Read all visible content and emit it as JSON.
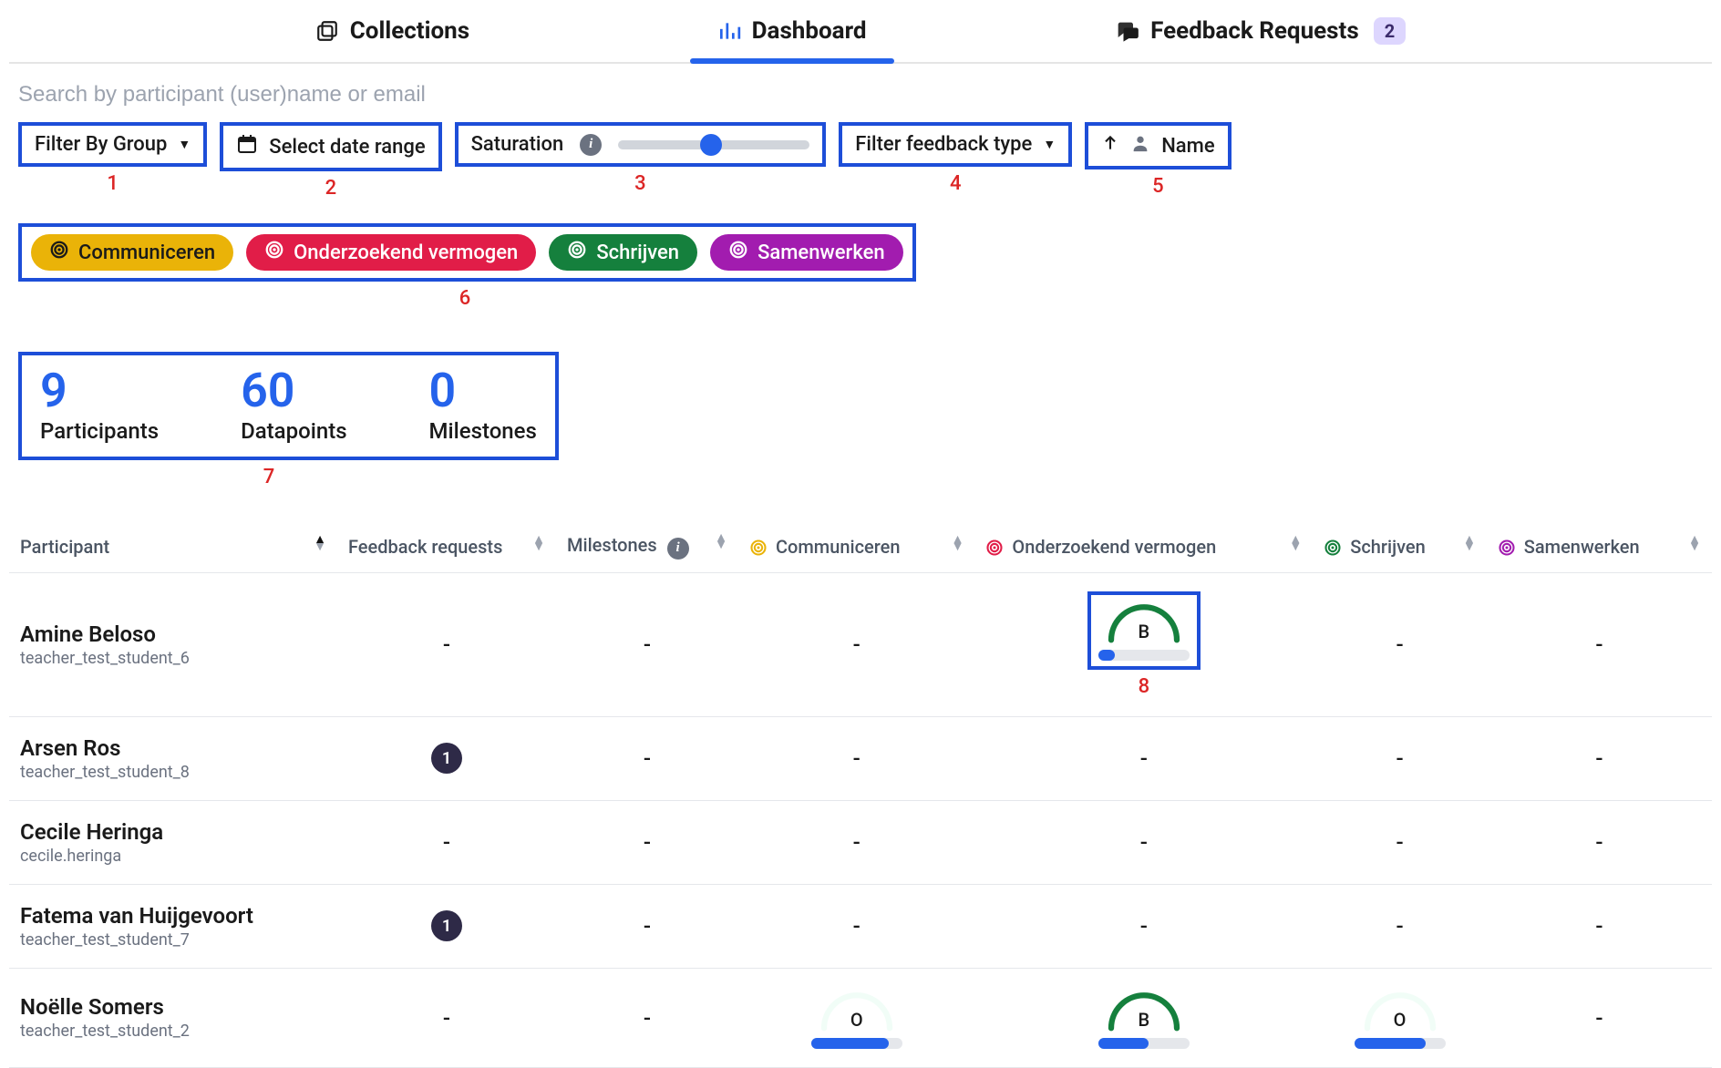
{
  "colors": {
    "brand_blue": "#2563eb",
    "box_blue": "#1d4ed8",
    "red_label": "#dc2626",
    "grey_text": "#6b7280",
    "badge_purple_bg": "#ddd6fe",
    "badge_purple_text": "#3b2b6b",
    "count_badge_bg": "#2e2a47",
    "grid": "#e5e7eb",
    "chip_yellow": "#eab308",
    "chip_red": "#e11d48",
    "chip_green": "#15803d",
    "chip_purple": "#a21caf",
    "gauge_green": "#15803d",
    "gauge_faint": "#d1fae5"
  },
  "tabs": {
    "collections": "Collections",
    "dashboard": "Dashboard",
    "feedback_requests": "Feedback Requests",
    "feedback_badge": "2",
    "active": "dashboard"
  },
  "search": {
    "placeholder": "Search by participant (user)name or email"
  },
  "filters": {
    "group": {
      "label": "Filter By Group",
      "num": "1"
    },
    "date_range": {
      "label": "Select date range",
      "num": "2"
    },
    "saturation": {
      "label": "Saturation",
      "num": "3",
      "value": 0.45
    },
    "feedback_type": {
      "label": "Filter feedback type",
      "num": "4"
    },
    "sort_name": {
      "label": "Name",
      "num": "5"
    }
  },
  "chips": {
    "num": "6",
    "items": [
      {
        "label": "Communiceren",
        "color": "#eab308",
        "text": "#1a1a1a"
      },
      {
        "label": "Onderzoekend vermogen",
        "color": "#e11d48",
        "text": "#ffffff"
      },
      {
        "label": "Schrijven",
        "color": "#15803d",
        "text": "#ffffff"
      },
      {
        "label": "Samenwerken",
        "color": "#a21caf",
        "text": "#ffffff"
      }
    ]
  },
  "stats": {
    "num": "7",
    "participants": {
      "value": "9",
      "label": "Participants"
    },
    "datapoints": {
      "value": "60",
      "label": "Datapoints"
    },
    "milestones": {
      "value": "0",
      "label": "Milestones"
    }
  },
  "gauge_box_num": "8",
  "table": {
    "columns": {
      "participant": "Participant",
      "feedback_requests": "Feedback requests",
      "milestones": "Milestones",
      "c1": {
        "label": "Communiceren",
        "color": "#eab308"
      },
      "c2": {
        "label": "Onderzoekend vermogen",
        "color": "#e11d48"
      },
      "c3": {
        "label": "Schrijven",
        "color": "#15803d"
      },
      "c4": {
        "label": "Samenwerken",
        "color": "#a21caf"
      }
    },
    "rows": [
      {
        "name": "Amine Beloso",
        "user": "teacher_test_student_6",
        "feedback": null,
        "milestones": null,
        "c1": null,
        "c2": {
          "letter": "B",
          "arc_color": "#15803d",
          "arc_strength": 1.0,
          "fill": 0.18,
          "boxed": true
        },
        "c3": null,
        "c4": null
      },
      {
        "name": "Arsen Ros",
        "user": "teacher_test_student_8",
        "feedback": "1",
        "milestones": null,
        "c1": null,
        "c2": null,
        "c3": null,
        "c4": null
      },
      {
        "name": "Cecile Heringa",
        "user": "cecile.heringa",
        "feedback": null,
        "milestones": null,
        "c1": null,
        "c2": null,
        "c3": null,
        "c4": null
      },
      {
        "name": "Fatema van Huijgevoort",
        "user": "teacher_test_student_7",
        "feedback": "1",
        "milestones": null,
        "c1": null,
        "c2": null,
        "c3": null,
        "c4": null
      },
      {
        "name": "Noëlle Somers",
        "user": "teacher_test_student_2",
        "feedback": null,
        "milestones": null,
        "c1": {
          "letter": "O",
          "arc_color": "#d1fae5",
          "arc_strength": 0.3,
          "fill": 0.85
        },
        "c2": {
          "letter": "B",
          "arc_color": "#15803d",
          "arc_strength": 1.0,
          "fill": 0.55
        },
        "c3": {
          "letter": "O",
          "arc_color": "#d1fae5",
          "arc_strength": 0.3,
          "fill": 0.78
        },
        "c4": null
      }
    ]
  }
}
